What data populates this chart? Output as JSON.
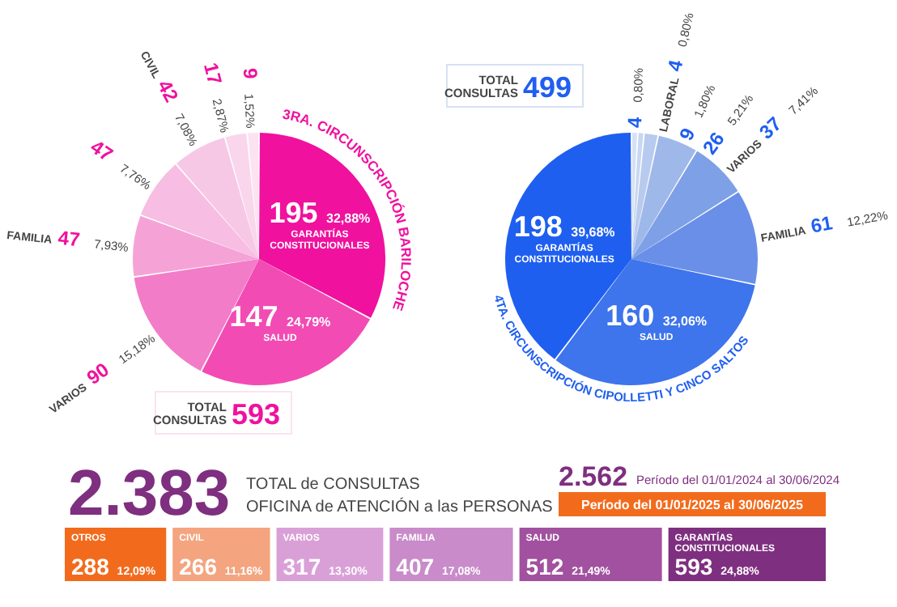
{
  "chart_data": [
    {
      "type": "pie",
      "title": "3RA. CIRCUNSCRIPCIÓN BARILOCHE",
      "categories": [
        "GARANTÍAS CONSTITUCIONALES",
        "SALUD",
        "VARIOS",
        "FAMILIA",
        null,
        "CIVIL",
        null,
        null
      ],
      "values": [
        195,
        147,
        90,
        47,
        47,
        42,
        17,
        9
      ],
      "value_labels": [
        "195 32,88%",
        "147 24,79%",
        "90 15,18%",
        "47 7,93%",
        "47 7,76%",
        "42 7,08%",
        "17 2,87%",
        "9 1,52%"
      ],
      "colors": [
        "#f0119e",
        "#f24bb4",
        "#f27cc8",
        "#f5a3d7",
        "#f7bde2",
        "#f7c8e6",
        "#f9d6ec",
        "#fbe3f1"
      ],
      "data_labels": true,
      "annotations": [
        "TOTAL CONSULTAS 593"
      ]
    },
    {
      "type": "pie",
      "title": "4TA. CIRCUNSCRIPCIÓN CIPOLLETTI Y CINCO SALTOS",
      "categories": [
        null,
        "LABORAL",
        null,
        null,
        "VARIOS",
        "FAMILIA",
        "SALUD",
        "GARANTÍAS CONSTITUCIONALES"
      ],
      "values": [
        4,
        4,
        9,
        26,
        37,
        61,
        160,
        198
      ],
      "value_labels": [
        "4 0,80%",
        "4 0,80%",
        "9 1,80%",
        "26 5,21%",
        "37 7,41%",
        "61 12,22%",
        "160 32,06%",
        "198 39,68%"
      ],
      "colors": [
        "#d6e1f5",
        "#c8d7f2",
        "#b8cbee",
        "#9fb8ea",
        "#7ea0e6",
        "#6a8fe8",
        "#3e74ec",
        "#1f5ff0"
      ],
      "data_labels": true,
      "annotations": [
        "TOTAL CONSULTAS 499"
      ]
    },
    {
      "type": "other",
      "title": "2.383",
      "subtitle": "TOTAL de CONSULTAS",
      "annotations": [
        "OFICINA de ATENCIÓN a las PERSONAS",
        "2.562",
        "Período del 01/01/2024 al 30/06/2024",
        "Período del 01/01/2025 al 30/06/2025"
      ],
      "categories": [
        "OTROS",
        "CIVIL",
        "VARIOS",
        "FAMILIA",
        "SALUD",
        "GARANTÍAS CONSTITUCIONALES"
      ],
      "values": [
        288,
        266,
        317,
        407,
        512,
        593
      ],
      "value_labels": [
        "288 12,09%",
        "266 11,16%",
        "317 13,30%",
        "407 17,08%",
        "512 21,49%",
        "593 24,88%"
      ],
      "colors": [
        "#f26b1d",
        "#f4a47f",
        "#d9a0d8",
        "#c98bc9",
        "#a1519f",
        "#7f2f7f"
      ],
      "data_labels": true
    }
  ]
}
